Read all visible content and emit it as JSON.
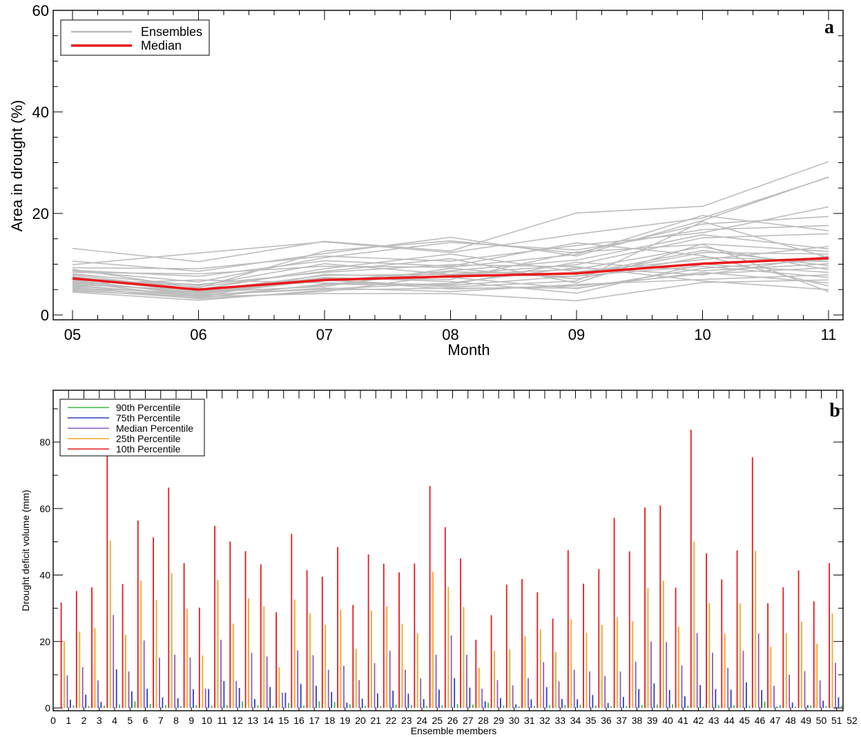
{
  "chart_data": [
    {
      "type": "line",
      "panel_letter": "a",
      "xlabel": "Month",
      "ylabel": "Area in drought (%)",
      "categories": [
        "05",
        "06",
        "07",
        "08",
        "09",
        "10",
        "11"
      ],
      "ylim": [
        0,
        60
      ],
      "yticks": [
        0,
        20,
        40,
        60
      ],
      "legend": {
        "position": "top-left",
        "entries": [
          {
            "label": "Ensembles",
            "color": "#bdbdbd"
          },
          {
            "label": "Median",
            "color": "#e8191c"
          }
        ]
      },
      "median": {
        "name": "Median",
        "color": "#e8191c",
        "values": [
          7.2,
          5.0,
          6.9,
          7.6,
          8.2,
          10.1,
          11.2
        ]
      },
      "ensemble_color": "#bdbdbd",
      "ensembles": [
        [
          13.1,
          10.5,
          14.5,
          12.6,
          20.1,
          21.4,
          30.2
        ],
        [
          10.6,
          8.6,
          12.1,
          15.3,
          11.6,
          18.6,
          27.2
        ],
        [
          9.9,
          12.2,
          14.4,
          12.3,
          15.9,
          19.1,
          27.1
        ],
        [
          9.3,
          9.1,
          11.6,
          10.6,
          13.7,
          16.2,
          21.3
        ],
        [
          9.0,
          5.3,
          12.6,
          14.6,
          12.2,
          17.9,
          19.4
        ],
        [
          8.7,
          6.5,
          11.3,
          14.3,
          12.8,
          16.8,
          17.6
        ],
        [
          8.4,
          8.1,
          9.6,
          9.4,
          11.9,
          19.6,
          16.6
        ],
        [
          8.1,
          5.8,
          10.1,
          8.0,
          9.9,
          15.2,
          16.0
        ],
        [
          7.9,
          5.0,
          9.1,
          12.0,
          8.5,
          10.9,
          13.5
        ],
        [
          7.6,
          4.6,
          6.7,
          8.7,
          10.8,
          15.8,
          13.0
        ],
        [
          7.4,
          5.5,
          8.6,
          11.1,
          6.3,
          14.0,
          12.5
        ],
        [
          7.1,
          4.7,
          7.8,
          8.0,
          7.6,
          12.3,
          12.0
        ],
        [
          6.9,
          3.9,
          5.1,
          6.3,
          9.3,
          7.9,
          11.6
        ],
        [
          6.7,
          4.2,
          7.0,
          5.5,
          6.7,
          18.4,
          11.3
        ],
        [
          6.5,
          3.5,
          8.0,
          7.4,
          5.2,
          9.2,
          10.9
        ],
        [
          6.3,
          4.5,
          5.6,
          9.2,
          7.1,
          11.4,
          10.5
        ],
        [
          6.1,
          6.9,
          6.3,
          6.0,
          10.4,
          8.7,
          10.1
        ],
        [
          5.9,
          3.7,
          5.9,
          8.5,
          8.0,
          12.7,
          9.7
        ],
        [
          5.7,
          4.0,
          6.9,
          5.1,
          5.7,
          8.1,
          9.3
        ],
        [
          5.5,
          3.2,
          4.6,
          7.9,
          9.0,
          13.4,
          8.9
        ],
        [
          5.3,
          4.3,
          7.4,
          6.6,
          4.3,
          10.0,
          8.4
        ],
        [
          5.1,
          3.8,
          5.3,
          4.6,
          6.0,
          7.0,
          7.9
        ],
        [
          4.9,
          3.3,
          6.1,
          5.8,
          7.7,
          9.6,
          7.4
        ],
        [
          4.7,
          3.6,
          4.2,
          4.2,
          2.8,
          6.4,
          6.9
        ],
        [
          4.5,
          2.9,
          4.9,
          5.3,
          5.3,
          8.4,
          6.3
        ],
        [
          8.8,
          7.6,
          10.7,
          9.6,
          14.2,
          11.7,
          5.7
        ],
        [
          7.0,
          6.0,
          8.4,
          9.9,
          9.5,
          6.7,
          5.0
        ],
        [
          6.0,
          4.9,
          7.2,
          7.0,
          12.4,
          13.9,
          4.6
        ]
      ]
    },
    {
      "type": "bar",
      "panel_letter": "b",
      "xlabel": "Ensemble members",
      "ylabel": "Drought deficit volume (mm)",
      "xticks": [
        0,
        1,
        2,
        3,
        4,
        5,
        6,
        7,
        8,
        9,
        10,
        11,
        12,
        13,
        14,
        15,
        16,
        17,
        18,
        19,
        20,
        21,
        22,
        23,
        24,
        25,
        26,
        27,
        28,
        29,
        30,
        31,
        32,
        33,
        34,
        35,
        36,
        37,
        38,
        39,
        40,
        41,
        42,
        43,
        44,
        45,
        46,
        47,
        48,
        49,
        50,
        51,
        52
      ],
      "ylim": [
        0,
        95
      ],
      "yticks": [
        0,
        20,
        40,
        60,
        80
      ],
      "legend": {
        "position": "top-left",
        "entries": [
          {
            "label": "90th Percentile",
            "color": "#3cb93c"
          },
          {
            "label": "75th Percentile",
            "color": "#2b3fbf"
          },
          {
            "label": "Median Percentile",
            "color": "#8e5bc8"
          },
          {
            "label": "25th Percentile",
            "color": "#f5a623"
          },
          {
            "label": "10th Percentile",
            "color": "#e8191c"
          }
        ]
      },
      "series": [
        {
          "name": "90th Percentile",
          "color": "#3cb93c",
          "values": [
            0.8,
            0.6,
            0.7,
            1.0,
            2.0,
            1.2,
            0.8,
            0.6,
            0.9,
            0.7,
            0.9,
            2.0,
            0.8,
            0.6,
            1.5,
            0.7,
            2.0,
            1.8,
            1.1,
            0.6,
            0.5,
            1.0,
            0.9,
            0.6,
            0.8,
            1.2,
            1.0,
            1.6,
            0.7,
            0.5,
            0.6,
            0.8,
            0.9,
            1.0,
            0.7,
            0.5,
            0.6,
            0.9,
            1.0,
            1.1,
            0.7,
            0.4,
            0.9,
            0.8,
            0.7,
            1.9,
            0.9,
            0.4,
            0.7,
            0.6,
            0.7,
            0.5
          ]
        },
        {
          "name": "75th Percentile",
          "color": "#2b3fbf",
          "values": [
            2.5,
            4.0,
            1.8,
            11.6,
            5.0,
            5.8,
            3.2,
            2.9,
            5.6,
            5.7,
            8.1,
            6.0,
            2.7,
            6.3,
            4.6,
            7.2,
            6.7,
            4.8,
            1.6,
            2.8,
            4.4,
            5.2,
            4.3,
            2.7,
            5.5,
            9.0,
            6.1,
            2.0,
            3.0,
            1.1,
            2.6,
            6.3,
            2.7,
            2.6,
            3.9,
            1.5,
            3.3,
            5.7,
            7.4,
            5.4,
            3.5,
            6.9,
            5.7,
            5.5,
            7.7,
            5.4,
            0.4,
            1.6,
            0.9,
            2.2,
            3.2,
            0.6
          ]
        },
        {
          "name": "Median Percentile",
          "color": "#8e5bc8",
          "values": [
            9.8,
            12.3,
            8.3,
            28.0,
            11.0,
            20.3,
            15.1,
            16.0,
            15.2,
            5.8,
            20.5,
            8.1,
            16.6,
            15.5,
            4.6,
            17.3,
            15.9,
            11.5,
            12.7,
            8.4,
            13.5,
            17.2,
            11.5,
            8.9,
            16.0,
            21.8,
            16.0,
            5.8,
            8.4,
            6.8,
            9.0,
            13.8,
            8.0,
            11.5,
            11.0,
            9.6,
            11.0,
            13.9,
            20.0,
            19.8,
            12.8,
            22.5,
            16.6,
            12.1,
            17.2,
            22.4,
            6.7,
            10.0,
            11.1,
            8.3,
            13.6,
            0.5
          ]
        },
        {
          "name": "25th Percentile",
          "color": "#f5a623",
          "values": [
            20.0,
            23.0,
            24.0,
            50.3,
            22.0,
            38.3,
            32.5,
            40.5,
            29.8,
            15.8,
            38.5,
            25.4,
            33.0,
            30.6,
            12.3,
            32.6,
            28.4,
            25.0,
            29.5,
            17.8,
            29.3,
            30.6,
            25.3,
            22.5,
            41.0,
            36.4,
            30.4,
            12.1,
            17.2,
            17.6,
            21.7,
            23.6,
            16.9,
            26.7,
            22.6,
            25.0,
            27.2,
            26.1,
            36.0,
            38.3,
            24.5,
            50.0,
            31.6,
            22.3,
            31.4,
            47.3,
            18.4,
            22.5,
            26.0,
            19.3,
            28.4,
            0.6
          ]
        },
        {
          "name": "10th Percentile",
          "color": "#e8191c",
          "values": [
            31.7,
            35.2,
            36.3,
            85.0,
            37.3,
            56.4,
            51.3,
            66.3,
            43.6,
            30.2,
            54.8,
            50.1,
            47.2,
            43.2,
            28.8,
            52.4,
            41.5,
            39.5,
            48.4,
            31.0,
            46.2,
            43.4,
            40.8,
            43.5,
            66.8,
            54.4,
            45.0,
            20.5,
            27.9,
            37.1,
            38.8,
            34.8,
            26.9,
            47.5,
            37.4,
            41.8,
            57.2,
            47.1,
            60.3,
            60.9,
            36.2,
            83.7,
            46.5,
            38.7,
            47.4,
            75.4,
            31.5,
            36.3,
            41.4,
            32.1,
            43.6,
            0.7
          ]
        }
      ]
    }
  ]
}
